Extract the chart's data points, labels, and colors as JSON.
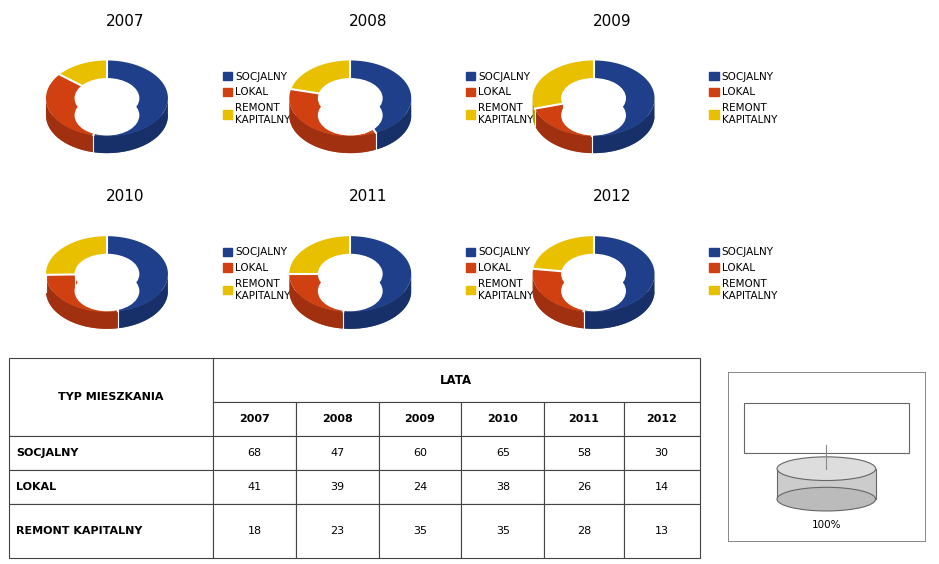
{
  "years": [
    "2007",
    "2008",
    "2009",
    "2010",
    "2011",
    "2012"
  ],
  "socjalny": [
    68,
    47,
    60,
    65,
    58,
    30
  ],
  "lokal": [
    41,
    39,
    24,
    38,
    26,
    14
  ],
  "remont_kapitalny": [
    18,
    23,
    35,
    35,
    28,
    13
  ],
  "colors": {
    "socjalny_top": "#1F3F8A",
    "socjalny_side": "#17306A",
    "lokal_top": "#D04010",
    "lokal_side": "#A03010",
    "remont_top": "#E8C000",
    "remont_side": "#B89400"
  },
  "legend_labels": [
    "SOCJALNY",
    "LOKAL",
    "REMONT\nKAPITALNY"
  ],
  "legend_colors": [
    "#1F3F8A",
    "#D04010",
    "#E8C000"
  ],
  "table_rows": [
    "SOCJALNY",
    "LOKAL",
    "REMONT KAPITALNY"
  ],
  "table_data": [
    [
      68,
      47,
      60,
      65,
      58,
      30
    ],
    [
      41,
      39,
      24,
      38,
      26,
      14
    ],
    [
      18,
      23,
      35,
      35,
      28,
      13
    ]
  ]
}
